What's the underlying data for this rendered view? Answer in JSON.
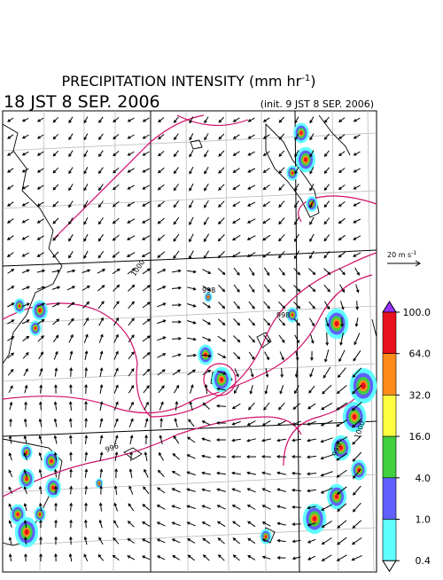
{
  "title": {
    "text": "PRECIPITATION INTENSITY (mm hr",
    "sup": "-1",
    "end": ")"
  },
  "valid_time": "18 JST 8 SEP. 2006",
  "init_time": "(init. 9 JST 8 SEP. 2006)",
  "reference_vector": {
    "text": "20 m s",
    "sup": "-1"
  },
  "contour_labels": [
    "1000",
    "998",
    "998",
    "996",
    "998",
    "1000"
  ],
  "colorbar": {
    "levels": [
      {
        "value": 100,
        "label": "100.0"
      },
      {
        "value": 64,
        "label": "64.0"
      },
      {
        "value": 32,
        "label": "32.0"
      },
      {
        "value": 16,
        "label": "16.0"
      },
      {
        "value": 4,
        "label": "4.0"
      },
      {
        "value": 1,
        "label": "1.0"
      },
      {
        "value": 0.4,
        "label": "0.4"
      }
    ],
    "colors": [
      "#9b30ff",
      "#e8101c",
      "#ff8c1a",
      "#ffff40",
      "#40d040",
      "#6060ff",
      "#60ffff",
      "#ffffff"
    ]
  }
}
